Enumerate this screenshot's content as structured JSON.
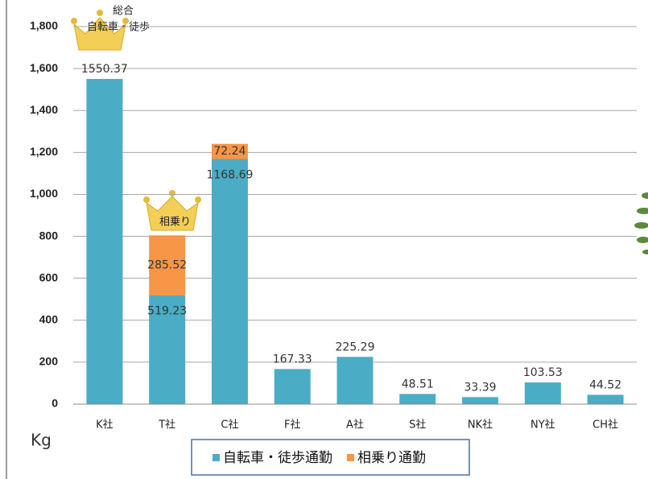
{
  "chart_data": {
    "type": "stacked_bar",
    "categories": [
      "K社",
      "T社",
      "C社",
      "F社",
      "A社",
      "S社",
      "NK社",
      "NY社",
      "CH社"
    ],
    "series": [
      {
        "name": "自転車・徒歩通勤",
        "color": "#4bacc6",
        "values": [
          1550.37,
          519.23,
          1168.69,
          167.33,
          225.29,
          48.51,
          33.39,
          103.53,
          44.52
        ]
      },
      {
        "name": "相乗り通勤",
        "color": "#f79646",
        "values": [
          null,
          285.52,
          72.24,
          null,
          null,
          null,
          null,
          null,
          null
        ]
      }
    ],
    "ylim": [
      0,
      1800
    ],
    "yticks": [
      0,
      200,
      400,
      600,
      800,
      {
        "value": 1000,
        "label": "1,000"
      },
      {
        "value": 1200,
        "label": "1,200"
      },
      {
        "value": 1400,
        "label": "1,400"
      },
      {
        "value": 1600,
        "label": "1,600"
      },
      {
        "value": 1800,
        "label": "1,800"
      }
    ],
    "y_label": "Kg",
    "annotations": [
      "総合",
      "自転車・徒歩",
      "相乗り"
    ],
    "grid": true
  }
}
